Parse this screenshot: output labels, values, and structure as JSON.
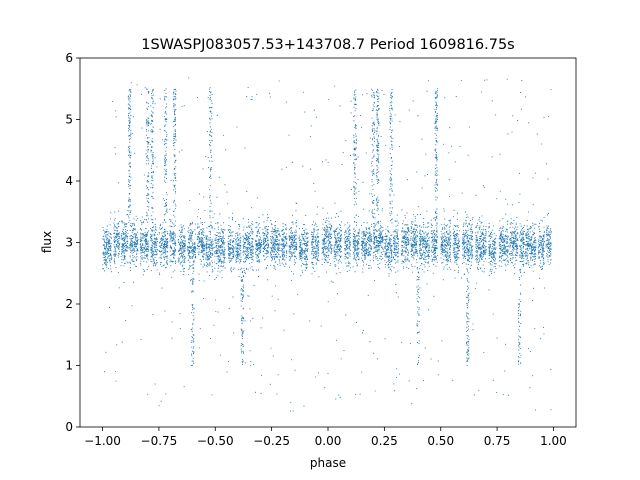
{
  "chart_data": {
    "type": "scatter",
    "title": "1SWASPJ083057.53+143708.7 Period 1609816.75s",
    "xlabel": "phase",
    "ylabel": "flux",
    "xlim": [
      -1.1,
      1.1
    ],
    "ylim": [
      0,
      6
    ],
    "xticks": [
      -1.0,
      -0.75,
      -0.5,
      -0.25,
      0.0,
      0.25,
      0.5,
      0.75,
      1.0
    ],
    "xtick_labels": [
      "−1.00",
      "−0.75",
      "−0.50",
      "−0.25",
      "0.00",
      "0.25",
      "0.50",
      "0.75",
      "1.00"
    ],
    "yticks": [
      0,
      1,
      2,
      3,
      4,
      5,
      6
    ],
    "ytick_labels": [
      "0",
      "1",
      "2",
      "3",
      "4",
      "5",
      "6"
    ],
    "grid": false,
    "marker_color": "#1f77b4",
    "series": [
      {
        "phase_range": [
          -1.0,
          1.0
        ],
        "baseline_flux": 2.95,
        "baseline_spread": [
          2.5,
          3.4
        ],
        "outlier_range": [
          0.25,
          5.7
        ],
        "high_excursion_phases": [
          -0.88,
          -0.8,
          -0.78,
          -0.72,
          -0.68,
          -0.52,
          0.12,
          0.2,
          0.22,
          0.28,
          0.48
        ],
        "low_excursion_phases": [
          -0.6,
          -0.38,
          0.4,
          0.62,
          0.85
        ]
      }
    ]
  }
}
